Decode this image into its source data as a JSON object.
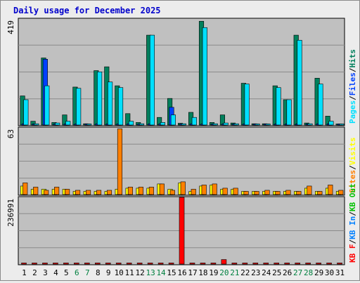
{
  "title": "Daily usage for December 2025",
  "colors": {
    "title": "#0000cc",
    "hits": "#00805c",
    "files": "#0040ff",
    "pages": "#00e0ff",
    "visits": "#ffff00",
    "sites": "#ff8000",
    "kb_f": "#ff0000",
    "kb_in": "#0080ff",
    "kb_out": "#00c000",
    "plot_bg": "#c0c0c0",
    "weekend_day": "#008040",
    "weekday_day": "#000000"
  },
  "chart_data": [
    {
      "type": "bar",
      "name": "hits-files-pages",
      "ymax_label": "419",
      "ylim": [
        0,
        419
      ],
      "legend": [
        {
          "text": "Pages",
          "color": "#00e0ff"
        },
        {
          "text": "/",
          "color": "#000000"
        },
        {
          "text": "Files",
          "color": "#0040ff"
        },
        {
          "text": "/",
          "color": "#000000"
        },
        {
          "text": "Hits",
          "color": "#00805c"
        }
      ],
      "series": [
        {
          "key": "hits",
          "values": [
            115,
            15,
            265,
            10,
            40,
            150,
            5,
            215,
            230,
            155,
            45,
            10,
            355,
            30,
            105,
            7,
            50,
            410,
            10,
            40,
            8,
            165,
            5,
            5,
            155,
            100,
            355,
            8,
            185,
            35,
            0
          ]
        },
        {
          "key": "files",
          "values": [
            5,
            2,
            260,
            2,
            2,
            2,
            0,
            5,
            2,
            2,
            5,
            2,
            5,
            5,
            70,
            2,
            5,
            2,
            2,
            2,
            0,
            2,
            0,
            0,
            2,
            2,
            2,
            2,
            5,
            5,
            0
          ]
        },
        {
          "key": "pages",
          "values": [
            100,
            5,
            155,
            8,
            15,
            145,
            3,
            210,
            170,
            148,
            15,
            5,
            355,
            10,
            40,
            5,
            30,
            385,
            5,
            8,
            5,
            162,
            3,
            3,
            148,
            100,
            335,
            5,
            162,
            15,
            0
          ]
        }
      ]
    },
    {
      "type": "bar",
      "name": "visits-sites",
      "ymax_label": "63",
      "ylim": [
        0,
        63
      ],
      "legend": [
        {
          "text": "Sites",
          "color": "#ff8000"
        },
        {
          "text": "/",
          "color": "#000000"
        },
        {
          "text": "Visits",
          "color": "#ffff00"
        }
      ],
      "series": [
        {
          "key": "visits",
          "values": [
            8,
            5,
            5,
            5,
            5,
            3,
            3,
            3,
            3,
            5,
            6,
            6,
            6,
            10,
            5,
            11,
            3,
            8,
            9,
            5,
            5,
            3,
            3,
            3,
            3,
            3,
            3,
            6,
            3,
            6,
            3
          ]
        },
        {
          "key": "sites",
          "values": [
            11,
            7,
            4,
            7,
            5,
            4,
            4,
            4,
            4,
            62,
            7,
            7,
            7,
            10,
            4,
            12,
            5,
            9,
            10,
            6,
            6,
            3,
            3,
            4,
            3,
            4,
            3,
            8,
            3,
            9,
            4
          ]
        }
      ]
    },
    {
      "type": "bar",
      "name": "kb",
      "ymax_label": "236991",
      "ylim": [
        0,
        236991
      ],
      "legend": [
        {
          "text": "KB F",
          "color": "#ff0000"
        },
        {
          "text": "/",
          "color": "#000000"
        },
        {
          "text": "KB In",
          "color": "#0080ff"
        },
        {
          "text": "/",
          "color": "#000000"
        },
        {
          "text": "KB Out",
          "color": "#00c000"
        }
      ],
      "series": [
        {
          "key": "kb_f",
          "values": [
            3000,
            3000,
            3000,
            3000,
            3000,
            3000,
            3000,
            3000,
            3000,
            3000,
            3000,
            3000,
            3000,
            3000,
            3000,
            236991,
            3000,
            3000,
            3000,
            16000,
            3000,
            3000,
            3000,
            3000,
            3000,
            3000,
            3000,
            3000,
            3000,
            3000,
            3000
          ]
        }
      ]
    }
  ],
  "days": [
    {
      "label": "1",
      "weekend": false
    },
    {
      "label": "2",
      "weekend": false
    },
    {
      "label": "3",
      "weekend": false
    },
    {
      "label": "4",
      "weekend": false
    },
    {
      "label": "5",
      "weekend": false
    },
    {
      "label": "6",
      "weekend": true
    },
    {
      "label": "7",
      "weekend": true
    },
    {
      "label": "8",
      "weekend": false
    },
    {
      "label": "9",
      "weekend": false
    },
    {
      "label": "10",
      "weekend": false
    },
    {
      "label": "11",
      "weekend": false
    },
    {
      "label": "12",
      "weekend": false
    },
    {
      "label": "13",
      "weekend": true
    },
    {
      "label": "14",
      "weekend": true
    },
    {
      "label": "15",
      "weekend": false
    },
    {
      "label": "16",
      "weekend": false
    },
    {
      "label": "17",
      "weekend": false
    },
    {
      "label": "18",
      "weekend": false
    },
    {
      "label": "19",
      "weekend": false
    },
    {
      "label": "20",
      "weekend": true
    },
    {
      "label": "21",
      "weekend": true
    },
    {
      "label": "22",
      "weekend": false
    },
    {
      "label": "23",
      "weekend": false
    },
    {
      "label": "24",
      "weekend": false
    },
    {
      "label": "25",
      "weekend": false
    },
    {
      "label": "26",
      "weekend": false
    },
    {
      "label": "27",
      "weekend": true
    },
    {
      "label": "28",
      "weekend": true
    },
    {
      "label": "29",
      "weekend": false
    },
    {
      "label": "30",
      "weekend": false
    },
    {
      "label": "31",
      "weekend": false
    }
  ]
}
